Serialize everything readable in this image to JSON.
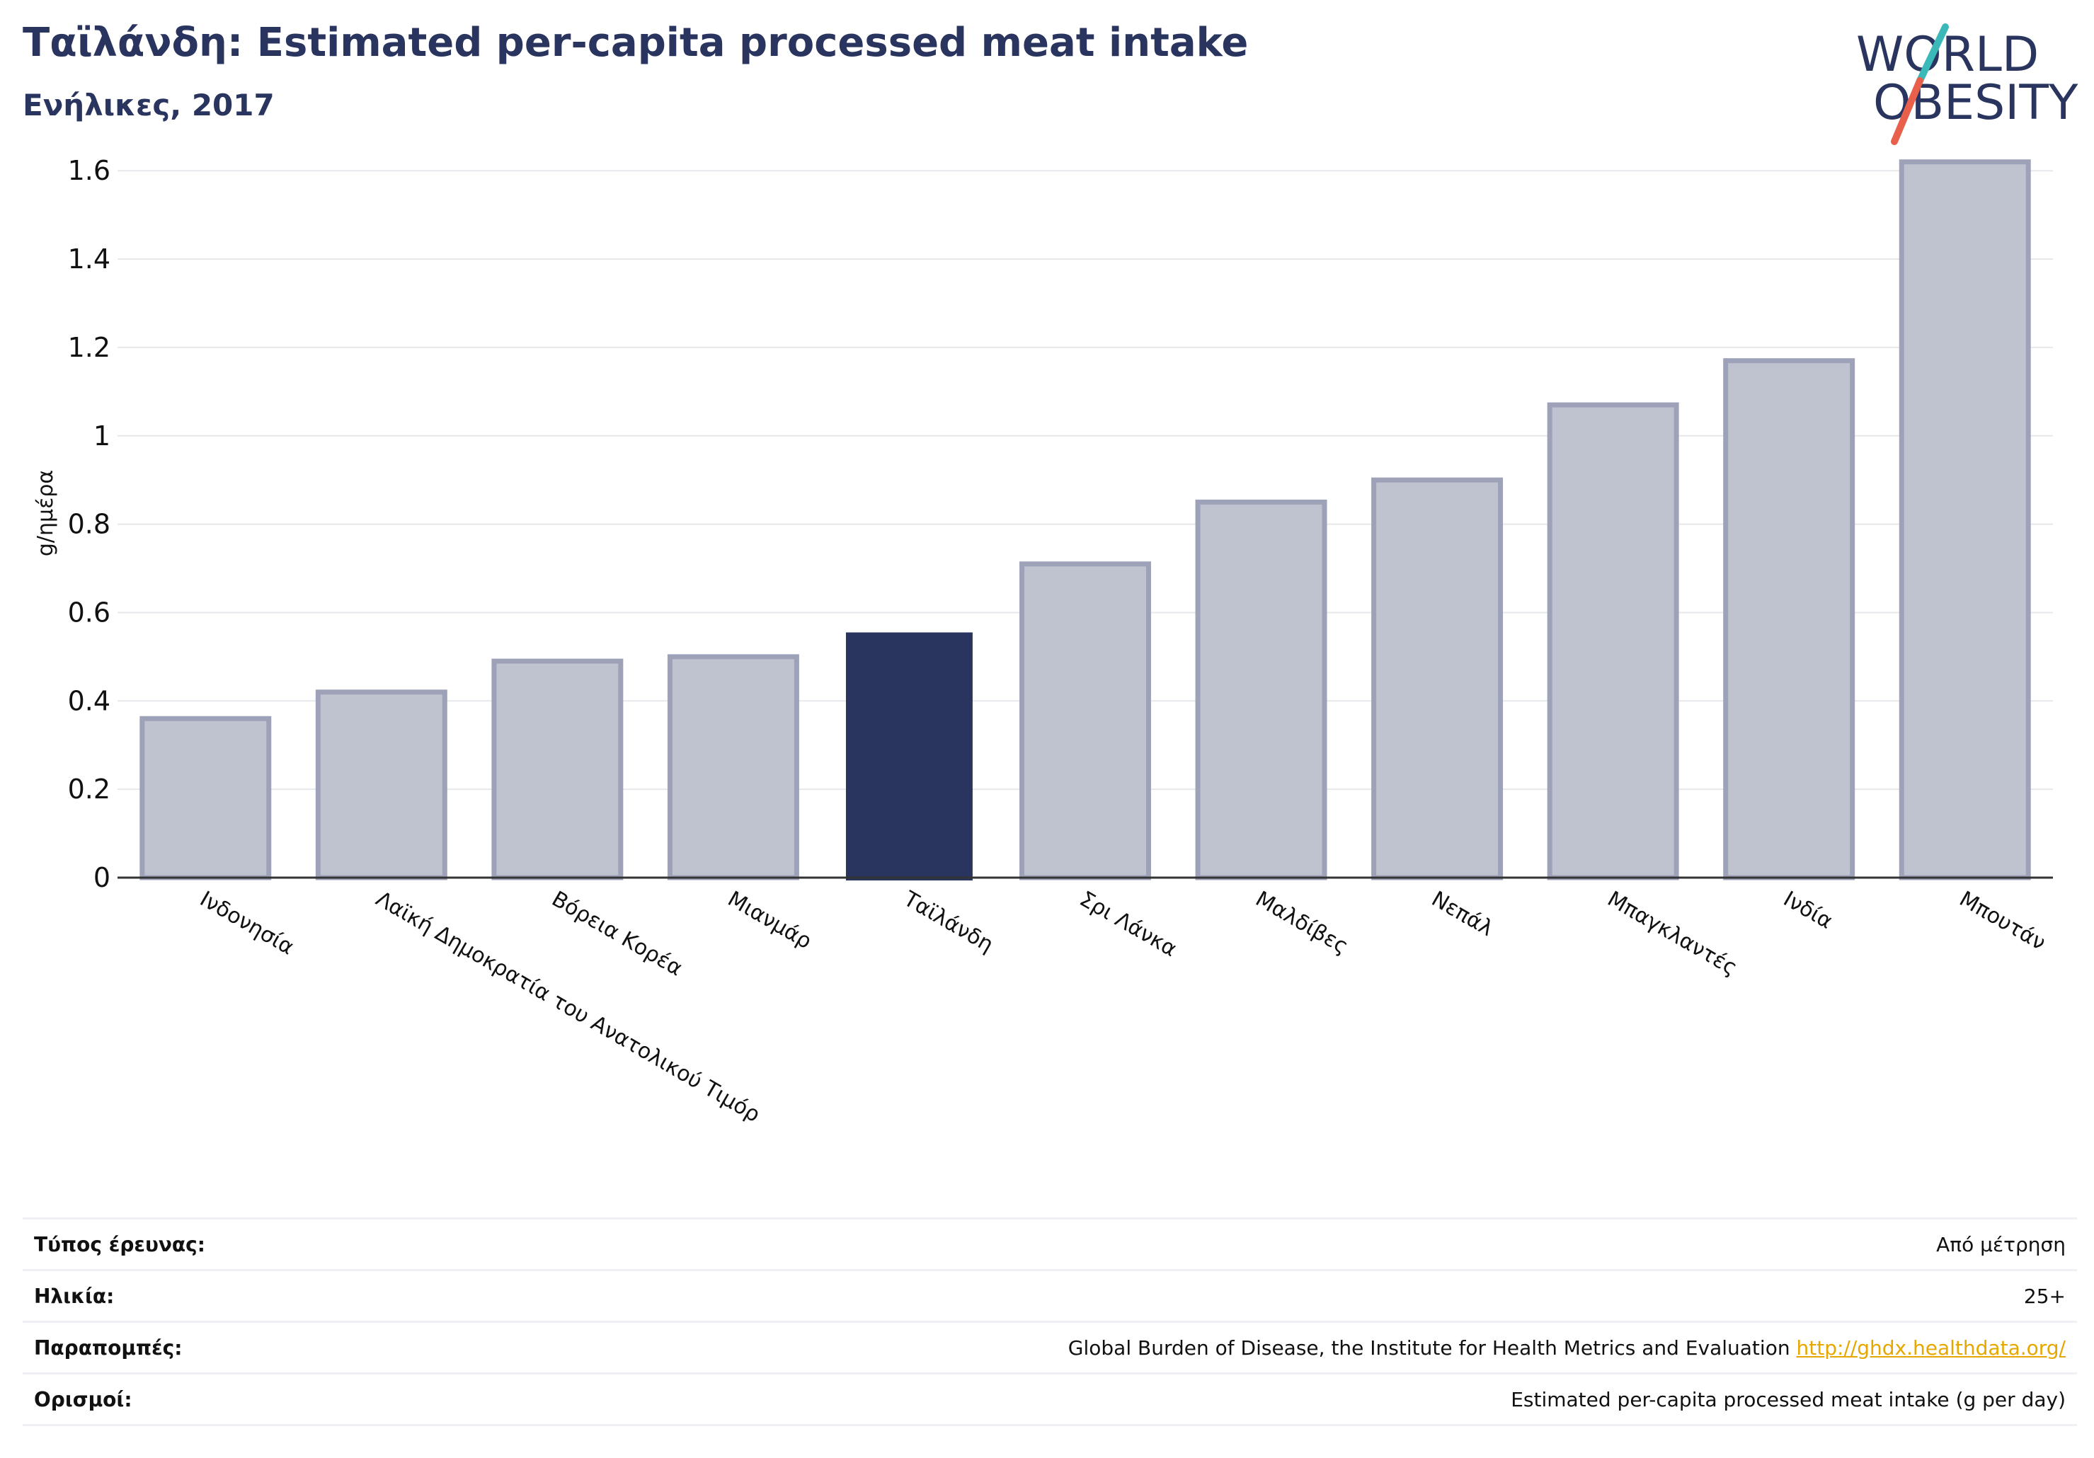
{
  "header": {
    "title": "Ταϊλάνδη: Estimated per-capita processed meat intake",
    "subtitle": "Ενήλικες, 2017"
  },
  "logo": {
    "line1": "WORLD",
    "line2": "OBESITY",
    "colors": {
      "text": "#2a355f",
      "slash_top": "#3bb8b8",
      "slash_bottom": "#e8604c"
    }
  },
  "chart_data": {
    "type": "bar",
    "ylabel": "g/ημέρα",
    "ylim": [
      0,
      1.65
    ],
    "yticks": [
      0,
      0.2,
      0.4,
      0.6,
      0.8,
      1,
      1.2,
      1.4,
      1.6
    ],
    "ytick_labels": [
      "0",
      "0.2",
      "0.4",
      "0.6",
      "0.8",
      "1",
      "1.2",
      "1.4",
      "1.6"
    ],
    "grid": true,
    "categories": [
      "Ινδονησία",
      "Λαϊκή Δημοκρατία του Ανατολικού Τιμόρ",
      "Βόρεια Κορέα",
      "Μιανμάρ",
      "Ταϊλάνδη",
      "Σρι Λάνκα",
      "Μαλδίβες",
      "Νεπάλ",
      "Μπαγκλαντές",
      "Ινδία",
      "Μπουτάν"
    ],
    "values": [
      0.36,
      0.42,
      0.49,
      0.5,
      0.555,
      0.71,
      0.85,
      0.9,
      1.07,
      1.17,
      1.62
    ],
    "highlight": "Ταϊλάνδη",
    "colors": {
      "bar": "#bfc2cf",
      "bar_stroke": "#9da2b8",
      "highlight": "#2a355f",
      "grid": "#e6e8ec",
      "axis": "#333333"
    }
  },
  "meta": {
    "rows": [
      {
        "key": "Τύπος έρευνας:",
        "value": "Από μέτρηση"
      },
      {
        "key": "Ηλικία:",
        "value": "25+"
      },
      {
        "key": "Παραπομπές:",
        "value": "Global Burden of Disease, the Institute for Health Metrics and Evaluation",
        "link": "http://ghdx.healthdata.org/"
      },
      {
        "key": "Ορισμοί:",
        "value": "Estimated per-capita processed meat intake (g per day)"
      }
    ]
  }
}
